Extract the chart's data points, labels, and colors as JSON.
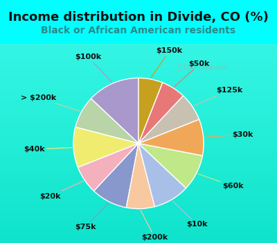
{
  "title": "Income distribution in Divide, CO (%)",
  "subtitle": "Black or African American residents",
  "background_color": "#00FFFF",
  "chart_bg_color_top": "#f0faf5",
  "chart_bg_color_bottom": "#c8e8d8",
  "labels": [
    "$100k",
    "> $200k",
    "$40k",
    "$20k",
    "$75k",
    "$200k",
    "$10k",
    "$60k",
    "$30k",
    "$125k",
    "$50k",
    "$150k"
  ],
  "values": [
    13,
    8,
    10,
    7,
    9,
    7,
    9,
    9,
    9,
    7,
    6,
    6
  ],
  "colors": [
    "#a898cc",
    "#b8d4a8",
    "#f0ec70",
    "#f4b0bc",
    "#8898cc",
    "#f8c8a0",
    "#a8c0e8",
    "#c0e888",
    "#f0a858",
    "#c8c0b0",
    "#e87878",
    "#c8a020"
  ],
  "label_fontsize": 8,
  "title_fontsize": 13,
  "subtitle_fontsize": 10,
  "startangle": 90,
  "label_colors": [
    "#a898cc",
    "#b8d4a8",
    "#f0ec70",
    "#f4b0bc",
    "#8898cc",
    "#f8c8a0",
    "#a8c0e8",
    "#c0e888",
    "#f0a858",
    "#c8c0b0",
    "#e87878",
    "#c8a020"
  ]
}
